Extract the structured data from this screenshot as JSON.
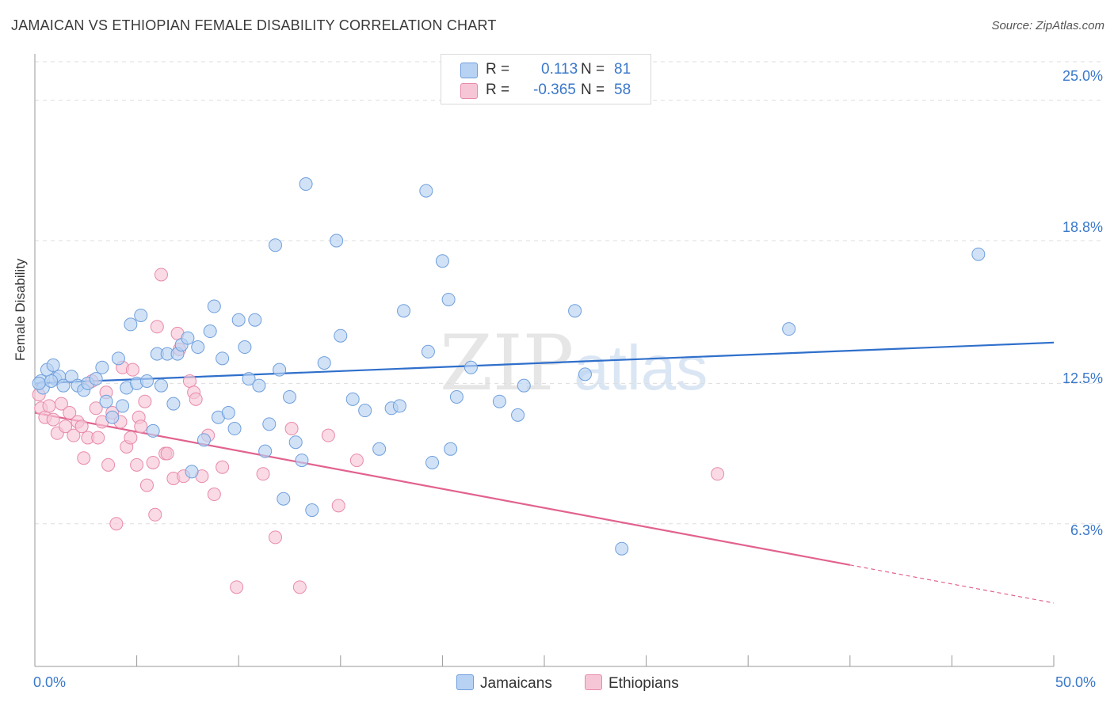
{
  "title": "JAMAICAN VS ETHIOPIAN FEMALE DISABILITY CORRELATION CHART",
  "source": "Source: ZipAtlas.com",
  "watermark": "ZIPatlas",
  "colors": {
    "jamaican_fill": "#b8d2f3",
    "jamaican_stroke": "#6f9fdc",
    "jamaican_line": "#2f6fcb",
    "ethiopian_fill": "#f7c6d6",
    "ethiopian_stroke": "#e88aab",
    "ethiopian_line": "#e2628f",
    "tick_text": "#3a78c9",
    "grid": "#dddddd"
  },
  "legend": {
    "rows": [
      {
        "r_label": "R =",
        "r_value": "0.113",
        "n_label": "N =",
        "n_value": "81",
        "color": "#b8d2f3",
        "border": "#6f9fdc"
      },
      {
        "r_label": "R =",
        "r_value": "-0.365",
        "n_label": "N =",
        "n_value": "58",
        "color": "#f7c6d6",
        "border": "#e88aab"
      }
    ]
  },
  "bottom_legend": {
    "jamaicans": "Jamaicans",
    "ethiopians": "Ethiopians"
  },
  "chart_data": {
    "type": "scatter",
    "title": "JAMAICAN VS ETHIOPIAN FEMALE DISABILITY CORRELATION CHART",
    "xlabel": "",
    "ylabel": "Female Disability",
    "xlim": [
      0,
      50
    ],
    "ylim": [
      0,
      26.7
    ],
    "x_tick_labels": [
      "0.0%",
      "50.0%"
    ],
    "y_ticks": [
      6.3,
      12.5,
      18.8,
      25.0
    ],
    "y_tick_labels": [
      "6.3%",
      "12.5%",
      "18.8%",
      "25.0%"
    ],
    "grid": true,
    "legend_position": "top-center",
    "series": [
      {
        "name": "Jamaicans",
        "points": [
          [
            0.3,
            12.6
          ],
          [
            0.4,
            12.3
          ],
          [
            0.6,
            13.1
          ],
          [
            0.9,
            13.3
          ],
          [
            1.0,
            12.7
          ],
          [
            1.2,
            12.8
          ],
          [
            1.4,
            12.4
          ],
          [
            1.8,
            12.8
          ],
          [
            2.1,
            12.4
          ],
          [
            2.4,
            12.2
          ],
          [
            2.6,
            12.5
          ],
          [
            3.0,
            12.7
          ],
          [
            3.3,
            13.2
          ],
          [
            3.5,
            11.7
          ],
          [
            3.8,
            11.0
          ],
          [
            4.1,
            13.6
          ],
          [
            4.3,
            11.5
          ],
          [
            4.5,
            12.3
          ],
          [
            4.7,
            15.1
          ],
          [
            5.0,
            12.5
          ],
          [
            5.2,
            15.5
          ],
          [
            5.5,
            12.6
          ],
          [
            5.8,
            10.4
          ],
          [
            6.0,
            13.8
          ],
          [
            6.2,
            12.4
          ],
          [
            6.5,
            13.8
          ],
          [
            6.8,
            11.6
          ],
          [
            7.0,
            13.8
          ],
          [
            7.2,
            14.2
          ],
          [
            7.5,
            14.5
          ],
          [
            7.7,
            8.6
          ],
          [
            8.0,
            14.1
          ],
          [
            8.3,
            10.0
          ],
          [
            8.6,
            14.8
          ],
          [
            8.8,
            15.9
          ],
          [
            9.0,
            11.0
          ],
          [
            9.2,
            13.6
          ],
          [
            9.5,
            11.2
          ],
          [
            9.8,
            10.5
          ],
          [
            10.0,
            15.3
          ],
          [
            10.3,
            14.1
          ],
          [
            10.5,
            12.7
          ],
          [
            10.8,
            15.3
          ],
          [
            11.0,
            12.4
          ],
          [
            11.3,
            9.5
          ],
          [
            11.5,
            10.7
          ],
          [
            11.8,
            18.6
          ],
          [
            12.0,
            13.1
          ],
          [
            12.2,
            7.4
          ],
          [
            12.5,
            11.9
          ],
          [
            12.8,
            9.9
          ],
          [
            13.1,
            9.1
          ],
          [
            13.3,
            21.3
          ],
          [
            13.6,
            6.9
          ],
          [
            14.2,
            13.4
          ],
          [
            14.8,
            18.8
          ],
          [
            15.0,
            14.6
          ],
          [
            15.6,
            11.8
          ],
          [
            16.2,
            11.3
          ],
          [
            16.9,
            9.6
          ],
          [
            17.5,
            11.4
          ],
          [
            17.9,
            11.5
          ],
          [
            18.1,
            15.7
          ],
          [
            19.2,
            21.0
          ],
          [
            19.3,
            13.9
          ],
          [
            19.5,
            9.0
          ],
          [
            20.0,
            17.9
          ],
          [
            20.3,
            16.2
          ],
          [
            20.4,
            9.6
          ],
          [
            20.7,
            11.9
          ],
          [
            21.4,
            13.2
          ],
          [
            22.8,
            11.7
          ],
          [
            23.7,
            11.1
          ],
          [
            24.0,
            12.4
          ],
          [
            26.5,
            15.7
          ],
          [
            27.0,
            12.9
          ],
          [
            28.8,
            5.2
          ],
          [
            37.0,
            14.9
          ],
          [
            46.3,
            18.2
          ],
          [
            0.2,
            12.5
          ],
          [
            0.8,
            12.6
          ]
        ]
      },
      {
        "name": "Ethiopians",
        "points": [
          [
            0.2,
            12.0
          ],
          [
            0.3,
            11.4
          ],
          [
            0.5,
            11.0
          ],
          [
            0.7,
            11.5
          ],
          [
            0.9,
            10.9
          ],
          [
            1.1,
            10.3
          ],
          [
            1.3,
            11.6
          ],
          [
            1.5,
            10.6
          ],
          [
            1.7,
            11.2
          ],
          [
            1.9,
            10.2
          ],
          [
            2.1,
            10.8
          ],
          [
            2.3,
            10.6
          ],
          [
            2.4,
            9.2
          ],
          [
            2.6,
            10.1
          ],
          [
            2.8,
            12.6
          ],
          [
            3.0,
            11.4
          ],
          [
            3.1,
            10.1
          ],
          [
            3.3,
            10.8
          ],
          [
            3.5,
            12.1
          ],
          [
            3.6,
            8.9
          ],
          [
            3.8,
            11.2
          ],
          [
            4.0,
            6.3
          ],
          [
            4.2,
            10.8
          ],
          [
            4.3,
            13.2
          ],
          [
            4.5,
            9.7
          ],
          [
            4.7,
            10.1
          ],
          [
            4.8,
            13.1
          ],
          [
            5.0,
            8.9
          ],
          [
            5.1,
            11.0
          ],
          [
            5.2,
            10.6
          ],
          [
            5.4,
            11.7
          ],
          [
            5.5,
            8.0
          ],
          [
            5.8,
            9.0
          ],
          [
            5.9,
            6.7
          ],
          [
            6.0,
            15.0
          ],
          [
            6.2,
            17.3
          ],
          [
            6.4,
            9.4
          ],
          [
            6.5,
            9.4
          ],
          [
            6.8,
            8.3
          ],
          [
            7.0,
            14.7
          ],
          [
            7.1,
            14.0
          ],
          [
            7.3,
            8.4
          ],
          [
            7.6,
            12.6
          ],
          [
            7.8,
            12.1
          ],
          [
            7.9,
            11.8
          ],
          [
            8.2,
            8.4
          ],
          [
            8.5,
            10.2
          ],
          [
            8.8,
            7.6
          ],
          [
            9.2,
            8.8
          ],
          [
            9.9,
            3.5
          ],
          [
            11.2,
            8.5
          ],
          [
            11.8,
            5.7
          ],
          [
            12.6,
            10.5
          ],
          [
            13.0,
            3.5
          ],
          [
            14.4,
            10.2
          ],
          [
            14.9,
            7.1
          ],
          [
            15.8,
            9.1
          ],
          [
            33.5,
            8.5
          ]
        ]
      }
    ],
    "trend_lines": [
      {
        "name": "Jamaicans",
        "x": [
          0,
          50
        ],
        "y": [
          12.5,
          14.3
        ],
        "dashed_from": null
      },
      {
        "name": "Ethiopians",
        "x": [
          0,
          50
        ],
        "y": [
          11.2,
          2.8
        ],
        "dashed_from": 40
      }
    ]
  }
}
